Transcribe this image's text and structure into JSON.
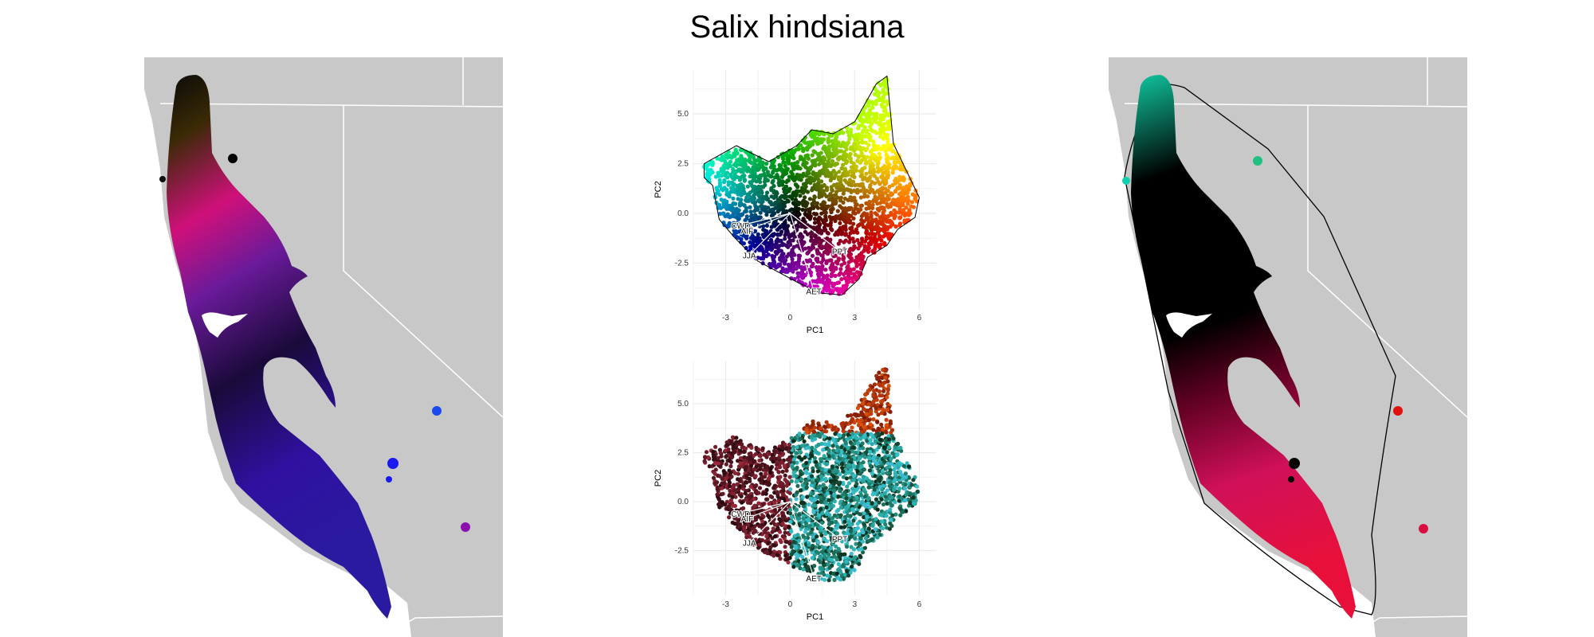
{
  "title": "Salix hindsiana",
  "chart_data": [
    {
      "type": "scatter",
      "panel": "pca-top",
      "xlabel": "PC1",
      "ylabel": "PC2",
      "xticks": [
        -3,
        0,
        3,
        6
      ],
      "yticks": [
        -2.5,
        0.0,
        2.5,
        5.0
      ],
      "xlim": [
        -4.5,
        6.8
      ],
      "ylim": [
        -4.8,
        7.2
      ],
      "grid": true,
      "coloring": "RGB color wheel by PC1/PC2 position",
      "loadings": [
        {
          "label": "CWD",
          "x": -2.3,
          "y": -0.6
        },
        {
          "label": "AIF",
          "x": -2.0,
          "y": -0.85
        },
        {
          "label": "JJA",
          "x": -1.9,
          "y": -2.1
        },
        {
          "label": "PPT",
          "x": 2.3,
          "y": -1.9
        },
        {
          "label": "AET",
          "x": 1.1,
          "y": -3.9
        }
      ]
    },
    {
      "type": "scatter",
      "panel": "pca-bottom",
      "xlabel": "PC1",
      "ylabel": "PC2",
      "xticks": [
        -3,
        0,
        3,
        6
      ],
      "yticks": [
        -2.5,
        0.0,
        2.5,
        5.0
      ],
      "xlim": [
        -4.5,
        6.8
      ],
      "ylim": [
        -4.8,
        7.2
      ],
      "grid": true,
      "coloring": "colors from geographic position",
      "loadings": [
        {
          "label": "CWD",
          "x": -2.3,
          "y": -0.6
        },
        {
          "label": "AIF",
          "x": -2.0,
          "y": -0.85
        },
        {
          "label": "JJA",
          "x": -1.9,
          "y": -2.1
        },
        {
          "label": "PPT",
          "x": 2.3,
          "y": -1.9
        },
        {
          "label": "AET",
          "x": 1.1,
          "y": -3.9
        }
      ]
    }
  ],
  "colors": {
    "land": "#c8c8c8",
    "border": "#ffffff",
    "grid": "#ebebeb",
    "loading": "#ffffff"
  }
}
